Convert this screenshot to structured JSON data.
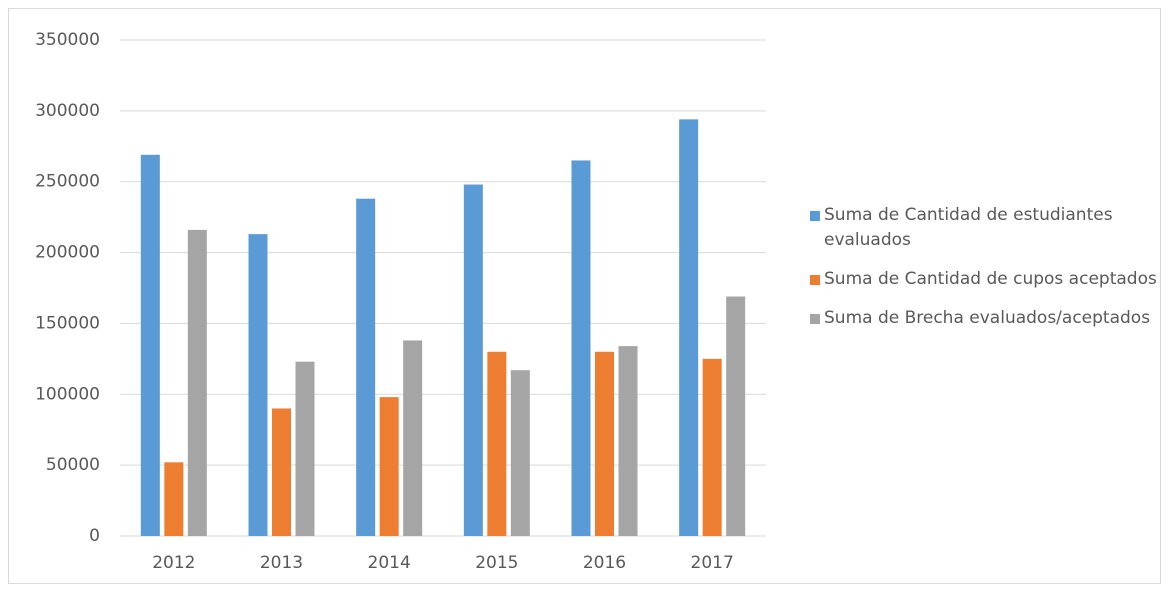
{
  "chart_data": {
    "type": "bar",
    "categories": [
      "2012",
      "2013",
      "2014",
      "2015",
      "2016",
      "2017"
    ],
    "series": [
      {
        "name": "Suma de Cantidad de estudiantes evaluados",
        "color": "#5b9bd5",
        "values": [
          269000,
          213000,
          238000,
          248000,
          265000,
          294000
        ]
      },
      {
        "name": "Suma de Cantidad de cupos aceptados",
        "color": "#ed7d31",
        "values": [
          52000,
          90000,
          98000,
          130000,
          130000,
          125000
        ]
      },
      {
        "name": "Suma de Brecha evaluados/aceptados",
        "color": "#a5a5a5",
        "values": [
          216000,
          123000,
          138000,
          117000,
          134000,
          169000
        ]
      }
    ],
    "ylim": [
      0,
      350000
    ],
    "yticks": [
      0,
      50000,
      100000,
      150000,
      200000,
      250000,
      300000,
      350000
    ],
    "grid": true,
    "legend": "right"
  }
}
